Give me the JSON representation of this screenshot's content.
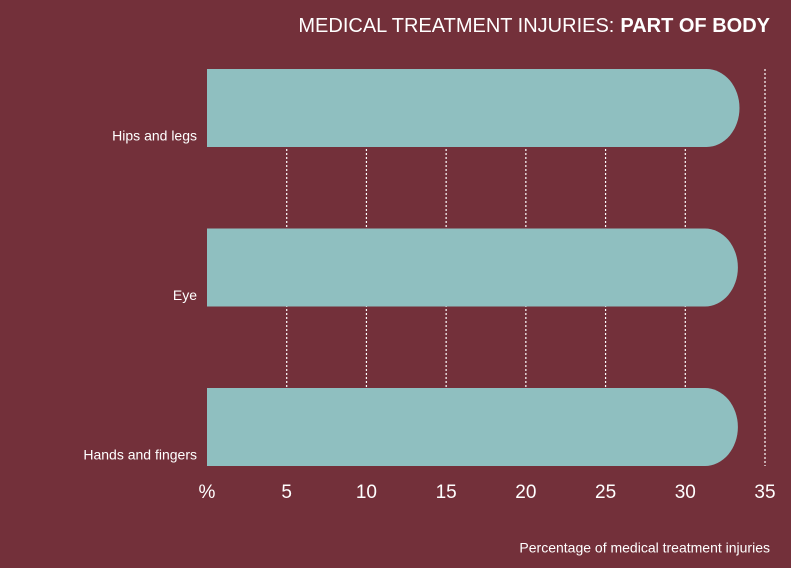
{
  "chart_data": {
    "type": "barh",
    "title": {
      "text": "MEDICAL TREATMENT INJURIES:",
      "emphasis": "PART OF BODY"
    },
    "x_label": "Percentage of medical treatment injuries",
    "categories": [
      "Hips and legs",
      "Eye",
      "Hands and fingers"
    ],
    "values": [
      33.4,
      33.3,
      33.3
    ],
    "color": "#8fbfc0",
    "xlim": [
      0,
      35
    ],
    "xticks": [
      {
        "value": 0,
        "label": "%"
      },
      5,
      10,
      15,
      20,
      25,
      30,
      35
    ],
    "grid": true
  }
}
